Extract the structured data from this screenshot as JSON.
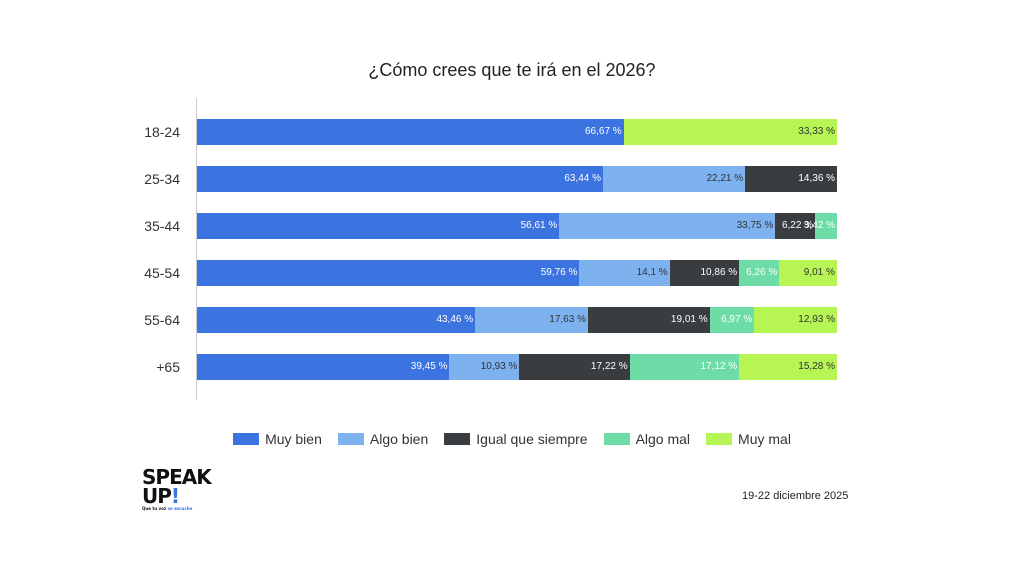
{
  "chart_data": {
    "type": "bar",
    "stacked": true,
    "orientation": "horizontal",
    "title": "¿Cómo crees que te irá en el 2026?",
    "categories": [
      "18-24",
      "25-34",
      "35-44",
      "45-54",
      "55-64",
      "+65"
    ],
    "xlim": [
      0,
      100
    ],
    "series": [
      {
        "name": "Muy bien",
        "color": "#3b73e0",
        "text": "#fff",
        "values": [
          66.67,
          63.44,
          56.61,
          59.76,
          43.46,
          39.45
        ]
      },
      {
        "name": "Algo bien",
        "color": "#7db2ef",
        "text": "#333",
        "values": [
          0,
          22.21,
          33.75,
          14.1,
          17.63,
          10.93
        ]
      },
      {
        "name": "Igual que siempre",
        "color": "#3a3d40",
        "text": "#fff",
        "values": [
          0,
          14.36,
          6.22,
          10.86,
          19.01,
          17.22
        ]
      },
      {
        "name": "Algo mal",
        "color": "#6edca6",
        "text": "#fff",
        "values": [
          0,
          0,
          3.42,
          6.26,
          6.97,
          17.12
        ]
      },
      {
        "name": "Muy mal",
        "color": "#b6f553",
        "text": "#333",
        "values": [
          33.33,
          0,
          0,
          9.01,
          12.93,
          15.28
        ]
      }
    ],
    "labels": [
      [
        "66,67 %",
        "",
        "",
        "",
        "33,33 %"
      ],
      [
        "63,44 %",
        "22,21 %",
        "14,36 %",
        "",
        ""
      ],
      [
        "56,61 %",
        "33,75 %",
        "6,22 %",
        "3,42 %",
        ""
      ],
      [
        "59,76 %",
        "14,1 %",
        "10,86 %",
        "6,26 %",
        "9,01 %"
      ],
      [
        "43,46 %",
        "17,63 %",
        "19,01 %",
        "6,97 %",
        "12,93 %"
      ],
      [
        "39,45 %",
        "10,93 %",
        "17,22 %",
        "17,12 %",
        "15,28 %"
      ]
    ]
  },
  "footer": {
    "date": "19-22 diciembre 2025",
    "logo": "SPEAK UP! Que tu voz se escuche"
  }
}
